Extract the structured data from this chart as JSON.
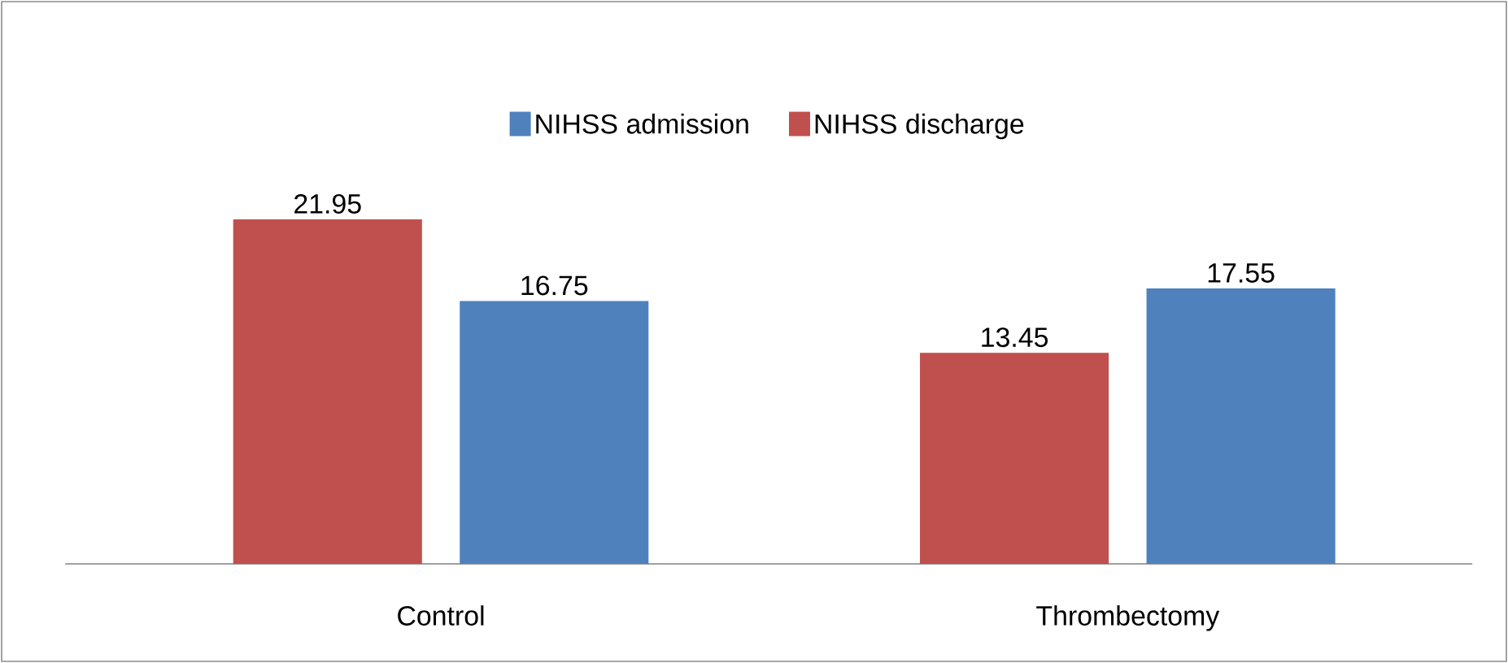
{
  "chart_data": {
    "type": "bar",
    "categories": [
      "Control",
      "Thrombectomy"
    ],
    "series": [
      {
        "name": "NIHSS discharge",
        "color": "#c0504d",
        "values": [
          21.95,
          13.45
        ]
      },
      {
        "name": "NIHSS admission",
        "color": "#4f81bd",
        "values": [
          16.75,
          17.55
        ]
      }
    ],
    "data_labels": true,
    "legend": "top"
  }
}
